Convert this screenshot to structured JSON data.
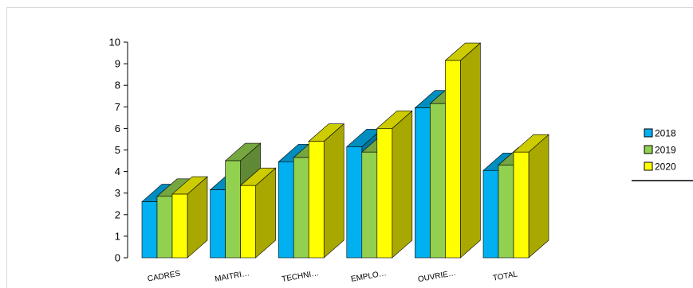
{
  "chart_data": {
    "type": "bar",
    "title": "",
    "xlabel": "",
    "ylabel": "",
    "categories": [
      "CADRES",
      "MAITRI…",
      "TECHNI…",
      "EMPLO…",
      "OUVRIE…",
      "TOTAL"
    ],
    "series": [
      {
        "name": "2018",
        "values": [
          2.6,
          3.15,
          4.45,
          5.15,
          6.95,
          4.05
        ],
        "color": "#00B0F0"
      },
      {
        "name": "2019",
        "values": [
          2.85,
          4.5,
          4.65,
          4.9,
          7.15,
          4.3
        ],
        "color": "#92D050"
      },
      {
        "name": "2020",
        "values": [
          2.95,
          3.35,
          5.4,
          6.0,
          9.15,
          4.9
        ],
        "color": "#FFFF00"
      }
    ],
    "ylim": [
      0,
      10
    ],
    "yticks": [
      0,
      1,
      2,
      3,
      4,
      5,
      6,
      7,
      8,
      9,
      10
    ],
    "grid": false,
    "legend_position": "right",
    "style": "3d-clustered-column"
  }
}
